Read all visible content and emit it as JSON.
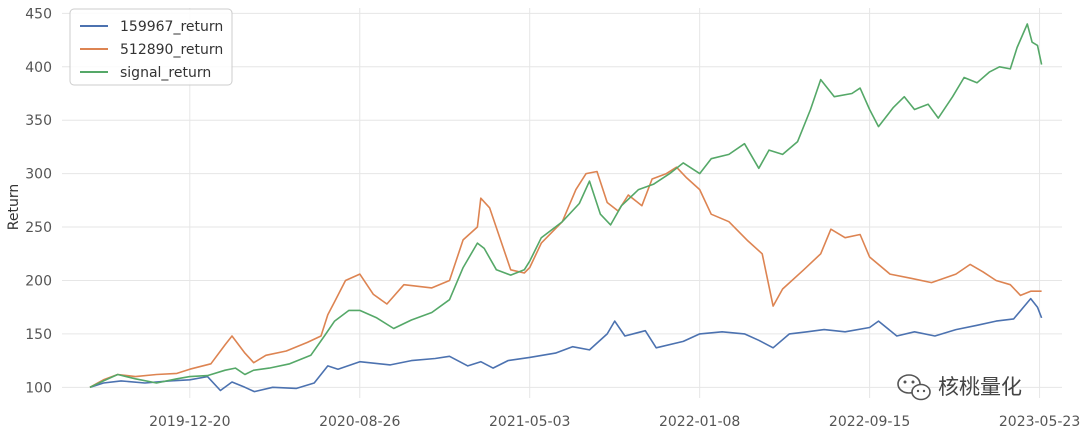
{
  "chart_data": {
    "type": "line",
    "title": "",
    "xlabel": "",
    "ylabel": "Return",
    "grid": true,
    "legend_position": "top-left",
    "x_ticks": [
      "2019-12-20",
      "2020-08-26",
      "2021-05-03",
      "2022-01-08",
      "2022-09-15",
      "2023-05-23"
    ],
    "y_ticks": [
      100,
      150,
      200,
      250,
      300,
      350,
      400,
      450
    ],
    "ylim": [
      90,
      455
    ],
    "xlim": [
      "2019-06-15",
      "2023-06-25"
    ],
    "series": [
      {
        "name": "159967_return",
        "color": "#4c72b0",
        "points": [
          [
            "2019-07-26",
            100
          ],
          [
            "2019-08-15",
            104
          ],
          [
            "2019-09-10",
            106
          ],
          [
            "2019-10-15",
            104
          ],
          [
            "2019-11-20",
            106
          ],
          [
            "2019-12-20",
            107
          ],
          [
            "2020-01-15",
            110
          ],
          [
            "2020-02-03",
            97
          ],
          [
            "2020-02-20",
            105
          ],
          [
            "2020-03-10",
            100
          ],
          [
            "2020-03-24",
            96
          ],
          [
            "2020-04-20",
            100
          ],
          [
            "2020-05-25",
            99
          ],
          [
            "2020-06-20",
            104
          ],
          [
            "2020-07-10",
            120
          ],
          [
            "2020-07-25",
            117
          ],
          [
            "2020-08-26",
            124
          ],
          [
            "2020-10-10",
            121
          ],
          [
            "2020-11-10",
            125
          ],
          [
            "2020-12-15",
            127
          ],
          [
            "2021-01-05",
            129
          ],
          [
            "2021-02-01",
            120
          ],
          [
            "2021-02-20",
            124
          ],
          [
            "2021-03-10",
            118
          ],
          [
            "2021-04-01",
            125
          ],
          [
            "2021-05-03",
            128
          ],
          [
            "2021-06-10",
            132
          ],
          [
            "2021-07-05",
            138
          ],
          [
            "2021-07-30",
            135
          ],
          [
            "2021-08-25",
            150
          ],
          [
            "2021-09-05",
            162
          ],
          [
            "2021-09-20",
            148
          ],
          [
            "2021-10-20",
            153
          ],
          [
            "2021-11-05",
            137
          ],
          [
            "2021-12-15",
            143
          ],
          [
            "2022-01-08",
            150
          ],
          [
            "2022-02-10",
            152
          ],
          [
            "2022-03-15",
            150
          ],
          [
            "2022-04-05",
            144
          ],
          [
            "2022-04-26",
            137
          ],
          [
            "2022-05-20",
            150
          ],
          [
            "2022-06-15",
            152
          ],
          [
            "2022-07-10",
            154
          ],
          [
            "2022-08-10",
            152
          ],
          [
            "2022-09-15",
            156
          ],
          [
            "2022-09-28",
            162
          ],
          [
            "2022-10-25",
            148
          ],
          [
            "2022-11-20",
            152
          ],
          [
            "2022-12-20",
            148
          ],
          [
            "2023-01-20",
            154
          ],
          [
            "2023-02-20",
            158
          ],
          [
            "2023-03-20",
            162
          ],
          [
            "2023-04-15",
            164
          ],
          [
            "2023-04-28",
            174
          ],
          [
            "2023-05-10",
            183
          ],
          [
            "2023-05-20",
            175
          ],
          [
            "2023-05-26",
            165
          ]
        ]
      },
      {
        "name": "512890_return",
        "color": "#dd8452",
        "points": [
          [
            "2019-07-26",
            100
          ],
          [
            "2019-08-15",
            107
          ],
          [
            "2019-09-05",
            112
          ],
          [
            "2019-10-01",
            110
          ],
          [
            "2019-11-01",
            112
          ],
          [
            "2019-12-01",
            113
          ],
          [
            "2019-12-20",
            117
          ],
          [
            "2020-01-20",
            122
          ],
          [
            "2020-02-10",
            140
          ],
          [
            "2020-02-20",
            148
          ],
          [
            "2020-03-10",
            132
          ],
          [
            "2020-03-23",
            123
          ],
          [
            "2020-04-10",
            130
          ],
          [
            "2020-05-10",
            134
          ],
          [
            "2020-06-10",
            142
          ],
          [
            "2020-06-30",
            148
          ],
          [
            "2020-07-10",
            168
          ],
          [
            "2020-07-20",
            180
          ],
          [
            "2020-08-05",
            200
          ],
          [
            "2020-08-26",
            206
          ],
          [
            "2020-09-15",
            187
          ],
          [
            "2020-10-05",
            178
          ],
          [
            "2020-10-30",
            196
          ],
          [
            "2020-12-10",
            193
          ],
          [
            "2021-01-05",
            200
          ],
          [
            "2021-01-25",
            238
          ],
          [
            "2021-02-15",
            250
          ],
          [
            "2021-02-20",
            277
          ],
          [
            "2021-03-05",
            268
          ],
          [
            "2021-03-20",
            240
          ],
          [
            "2021-04-05",
            210
          ],
          [
            "2021-04-25",
            207
          ],
          [
            "2021-05-03",
            212
          ],
          [
            "2021-05-20",
            235
          ],
          [
            "2021-06-20",
            255
          ],
          [
            "2021-07-10",
            285
          ],
          [
            "2021-07-25",
            300
          ],
          [
            "2021-08-10",
            302
          ],
          [
            "2021-08-25",
            273
          ],
          [
            "2021-09-10",
            265
          ],
          [
            "2021-09-25",
            280
          ],
          [
            "2021-10-15",
            270
          ],
          [
            "2021-10-30",
            295
          ],
          [
            "2021-11-20",
            300
          ],
          [
            "2021-12-05",
            306
          ],
          [
            "2021-12-20",
            296
          ],
          [
            "2022-01-08",
            285
          ],
          [
            "2022-01-25",
            262
          ],
          [
            "2022-02-20",
            255
          ],
          [
            "2022-03-20",
            237
          ],
          [
            "2022-04-10",
            225
          ],
          [
            "2022-04-26",
            176
          ],
          [
            "2022-05-10",
            192
          ],
          [
            "2022-06-10",
            210
          ],
          [
            "2022-07-05",
            225
          ],
          [
            "2022-07-20",
            248
          ],
          [
            "2022-08-10",
            240
          ],
          [
            "2022-09-01",
            243
          ],
          [
            "2022-09-15",
            222
          ],
          [
            "2022-10-15",
            206
          ],
          [
            "2022-11-15",
            202
          ],
          [
            "2022-12-15",
            198
          ],
          [
            "2023-01-20",
            206
          ],
          [
            "2023-02-10",
            215
          ],
          [
            "2023-03-01",
            208
          ],
          [
            "2023-03-20",
            200
          ],
          [
            "2023-04-10",
            196
          ],
          [
            "2023-04-25",
            186
          ],
          [
            "2023-05-10",
            190
          ],
          [
            "2023-05-26",
            190
          ]
        ]
      },
      {
        "name": "signal_return",
        "color": "#55a868",
        "points": [
          [
            "2019-07-26",
            100
          ],
          [
            "2019-08-15",
            106
          ],
          [
            "2019-09-05",
            112
          ],
          [
            "2019-10-01",
            108
          ],
          [
            "2019-11-01",
            104
          ],
          [
            "2019-12-01",
            108
          ],
          [
            "2019-12-20",
            110
          ],
          [
            "2020-01-15",
            111
          ],
          [
            "2020-02-10",
            116
          ],
          [
            "2020-02-25",
            118
          ],
          [
            "2020-03-10",
            112
          ],
          [
            "2020-03-23",
            116
          ],
          [
            "2020-04-15",
            118
          ],
          [
            "2020-05-15",
            122
          ],
          [
            "2020-06-15",
            130
          ],
          [
            "2020-07-05",
            148
          ],
          [
            "2020-07-20",
            162
          ],
          [
            "2020-08-10",
            172
          ],
          [
            "2020-08-26",
            172
          ],
          [
            "2020-09-20",
            165
          ],
          [
            "2020-10-15",
            155
          ],
          [
            "2020-11-10",
            163
          ],
          [
            "2020-12-10",
            170
          ],
          [
            "2021-01-05",
            182
          ],
          [
            "2021-01-25",
            212
          ],
          [
            "2021-02-15",
            235
          ],
          [
            "2021-02-25",
            230
          ],
          [
            "2021-03-15",
            210
          ],
          [
            "2021-04-05",
            205
          ],
          [
            "2021-04-25",
            210
          ],
          [
            "2021-05-03",
            218
          ],
          [
            "2021-05-20",
            240
          ],
          [
            "2021-06-20",
            255
          ],
          [
            "2021-07-15",
            272
          ],
          [
            "2021-07-30",
            293
          ],
          [
            "2021-08-15",
            262
          ],
          [
            "2021-08-30",
            252
          ],
          [
            "2021-09-15",
            270
          ],
          [
            "2021-10-10",
            285
          ],
          [
            "2021-11-01",
            290
          ],
          [
            "2021-11-25",
            300
          ],
          [
            "2021-12-15",
            310
          ],
          [
            "2022-01-08",
            300
          ],
          [
            "2022-01-25",
            314
          ],
          [
            "2022-02-20",
            318
          ],
          [
            "2022-03-15",
            328
          ],
          [
            "2022-04-05",
            305
          ],
          [
            "2022-04-20",
            322
          ],
          [
            "2022-05-10",
            318
          ],
          [
            "2022-06-01",
            330
          ],
          [
            "2022-06-20",
            360
          ],
          [
            "2022-07-05",
            388
          ],
          [
            "2022-07-25",
            372
          ],
          [
            "2022-08-20",
            375
          ],
          [
            "2022-09-01",
            380
          ],
          [
            "2022-09-15",
            360
          ],
          [
            "2022-09-28",
            344
          ],
          [
            "2022-10-20",
            362
          ],
          [
            "2022-11-05",
            372
          ],
          [
            "2022-11-20",
            360
          ],
          [
            "2022-12-10",
            365
          ],
          [
            "2022-12-25",
            352
          ],
          [
            "2023-01-15",
            372
          ],
          [
            "2023-02-01",
            390
          ],
          [
            "2023-02-20",
            385
          ],
          [
            "2023-03-10",
            395
          ],
          [
            "2023-03-25",
            400
          ],
          [
            "2023-04-10",
            398
          ],
          [
            "2023-04-20",
            418
          ],
          [
            "2023-05-05",
            440
          ],
          [
            "2023-05-12",
            423
          ],
          [
            "2023-05-20",
            420
          ],
          [
            "2023-05-26",
            402
          ]
        ]
      }
    ]
  },
  "watermark": {
    "text": "核桃量化",
    "icon": "wechat-icon"
  }
}
